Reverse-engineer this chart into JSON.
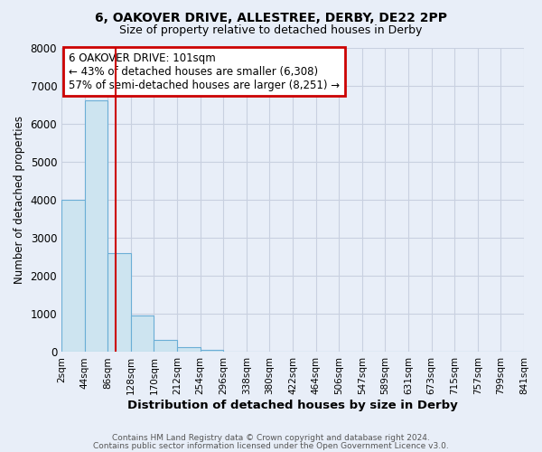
{
  "title1": "6, OAKOVER DRIVE, ALLESTREE, DERBY, DE22 2PP",
  "title2": "Size of property relative to detached houses in Derby",
  "xlabel": "Distribution of detached houses by size in Derby",
  "ylabel": "Number of detached properties",
  "bar_values": [
    4000,
    6600,
    2600,
    970,
    330,
    140,
    60,
    0,
    0,
    0,
    0,
    0,
    0,
    0,
    0,
    0,
    0,
    0,
    0,
    0
  ],
  "bin_labels": [
    "2sqm",
    "44sqm",
    "86sqm",
    "128sqm",
    "170sqm",
    "212sqm",
    "254sqm",
    "296sqm",
    "338sqm",
    "380sqm",
    "422sqm",
    "464sqm",
    "506sqm",
    "547sqm",
    "589sqm",
    "631sqm",
    "673sqm",
    "715sqm",
    "757sqm",
    "799sqm",
    "841sqm"
  ],
  "bar_color": "#cde4f0",
  "bar_edge_color": "#6baed6",
  "marker_color": "#cc0000",
  "annotation_title": "6 OAKOVER DRIVE: 101sqm",
  "annotation_line1": "← 43% of detached houses are smaller (6,308)",
  "annotation_line2": "57% of semi-detached houses are larger (8,251) →",
  "annotation_box_color": "#cc0000",
  "ylim": [
    0,
    8000
  ],
  "yticks": [
    0,
    1000,
    2000,
    3000,
    4000,
    5000,
    6000,
    7000,
    8000
  ],
  "grid_color": "#c8d0e0",
  "bg_color": "#e8eef8",
  "plot_bg_color": "#e8eef8",
  "footer1": "Contains HM Land Registry data © Crown copyright and database right 2024.",
  "footer2": "Contains public sector information licensed under the Open Government Licence v3.0."
}
